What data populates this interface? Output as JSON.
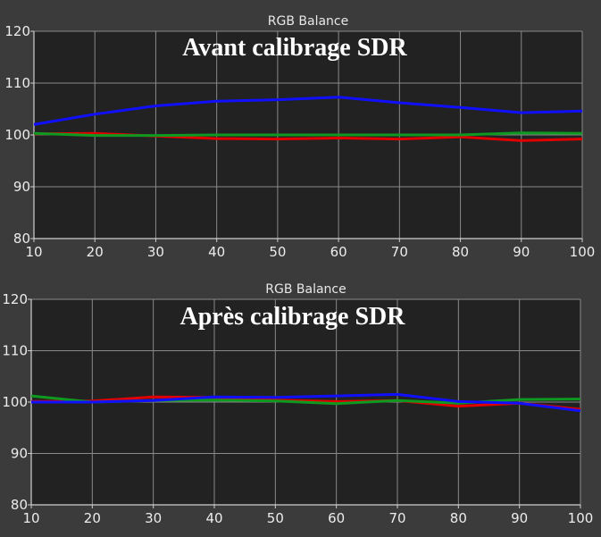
{
  "chart_data": [
    {
      "type": "line",
      "title": "RGB Balance",
      "annotation": "Avant calibrage SDR",
      "x": [
        10,
        20,
        30,
        40,
        50,
        60,
        70,
        80,
        90,
        100
      ],
      "xlim": [
        10,
        100
      ],
      "ylim": [
        80,
        120
      ],
      "x_ticks": [
        10,
        20,
        30,
        40,
        50,
        60,
        70,
        80,
        90,
        100
      ],
      "y_ticks": [
        80,
        90,
        100,
        110,
        120
      ],
      "grid": true,
      "series": [
        {
          "color": "#e00000",
          "values": [
            100.2,
            100.3,
            99.8,
            99.3,
            99.2,
            99.4,
            99.2,
            99.6,
            98.9,
            99.2
          ]
        },
        {
          "color": "#0e9a20",
          "values": [
            100.3,
            99.9,
            99.9,
            100.0,
            100.0,
            100.0,
            100.0,
            100.0,
            100.4,
            100.3
          ]
        },
        {
          "color": "#1010ff",
          "values": [
            102.0,
            104.0,
            105.6,
            106.5,
            106.8,
            107.3,
            106.2,
            105.3,
            104.3,
            104.6
          ]
        }
      ]
    },
    {
      "type": "line",
      "title": "RGB Balance",
      "annotation": "Après calibrage SDR",
      "x": [
        10,
        20,
        30,
        40,
        50,
        60,
        70,
        80,
        90,
        100
      ],
      "xlim": [
        10,
        100
      ],
      "ylim": [
        80,
        120
      ],
      "x_ticks": [
        10,
        20,
        30,
        40,
        50,
        60,
        70,
        80,
        90,
        100
      ],
      "y_ticks": [
        80,
        90,
        100,
        110,
        120
      ],
      "grid": true,
      "series": [
        {
          "color": "#e00000",
          "values": [
            100.1,
            100.2,
            101.0,
            100.9,
            100.4,
            100.1,
            100.3,
            99.2,
            99.8,
            98.6
          ]
        },
        {
          "color": "#0e9a20",
          "values": [
            101.2,
            100.0,
            100.3,
            100.4,
            100.2,
            99.7,
            100.3,
            99.8,
            100.5,
            100.6
          ]
        },
        {
          "color": "#1010ff",
          "values": [
            100.0,
            100.0,
            100.3,
            101.0,
            100.9,
            101.2,
            101.5,
            100.1,
            99.8,
            98.3
          ]
        }
      ]
    }
  ],
  "colors": {
    "page_background": "#3b3b3b",
    "plot_background": "#222222",
    "grid": "#8a8a8a"
  }
}
